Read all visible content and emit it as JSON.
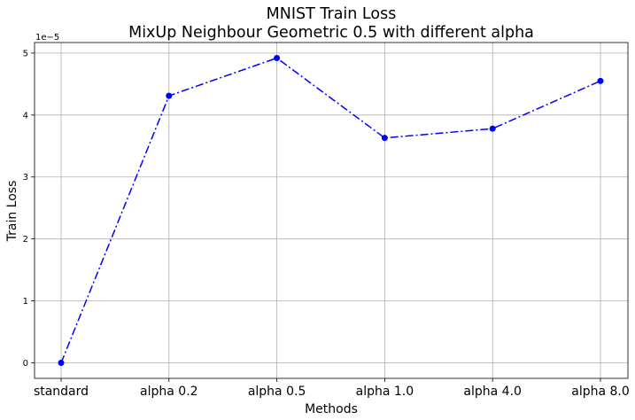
{
  "chart_data": {
    "type": "line",
    "title": "MNIST Train Loss",
    "subtitle": "MixUp Neighbour Geometric 0.5 with different alpha",
    "xlabel": "Methods",
    "ylabel": "Train Loss",
    "y_offset_label": "1e−5",
    "categories": [
      "standard",
      "alpha 0.2",
      "alpha 0.5",
      "alpha 1.0",
      "alpha 4.0",
      "alpha 8.0"
    ],
    "series": [
      {
        "values": [
          0.0,
          4.31,
          4.92,
          3.63,
          3.78,
          4.55
        ],
        "color": "#0000ff",
        "line_style": "dash-dot",
        "marker": "circle"
      }
    ],
    "yticks": [
      0,
      1,
      2,
      3,
      4,
      5
    ],
    "ytick_labels": [
      "0",
      "1",
      "2",
      "3",
      "4",
      "5"
    ],
    "ylim": [
      -0.25,
      5.17
    ],
    "grid": true
  }
}
